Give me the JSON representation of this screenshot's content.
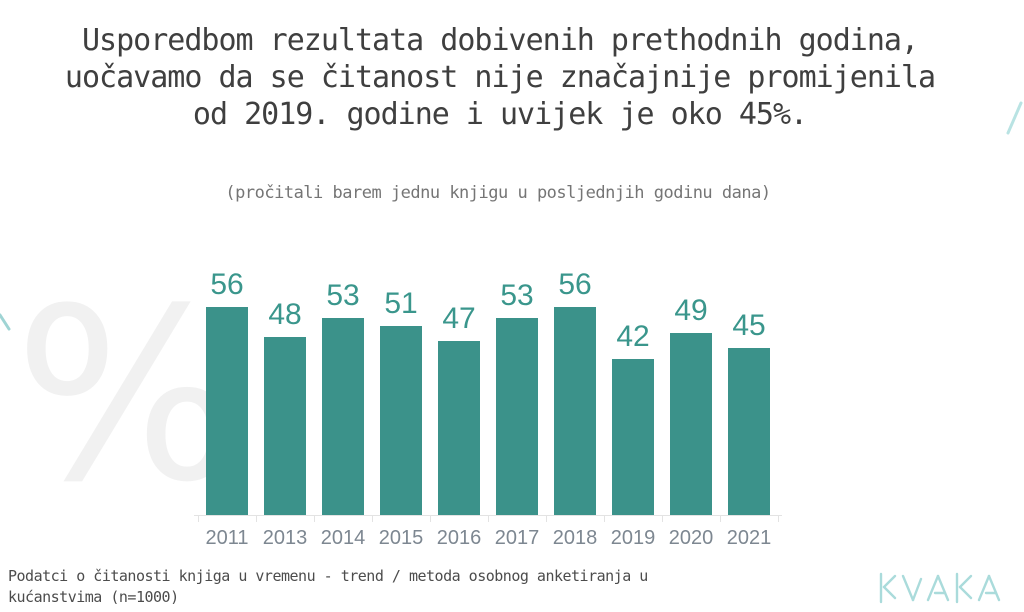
{
  "slide": {
    "title_lines": [
      "Usporedbom rezultata dobivenih prethodnih godina,",
      "uočavamo da se čitanost nije značajnije promijenila",
      "od 2019. godine i uvijek je oko 45%."
    ],
    "subtitle": "(pročitali barem jednu knjigu u posljednjih godinu dana)",
    "footnote": "Podatci o čitanosti knjiga u vremenu - trend / metoda osobnog anketiranja u kućanstvima (n=1000)",
    "watermark": "%",
    "logo_text": "KVAKA"
  },
  "chart_data": {
    "type": "bar",
    "categories": [
      "2011",
      "2013",
      "2014",
      "2015",
      "2016",
      "2017",
      "2018",
      "2019",
      "2020",
      "2021"
    ],
    "values": [
      56,
      48,
      53,
      51,
      47,
      53,
      56,
      42,
      49,
      45
    ],
    "unit": "%",
    "title": "",
    "xlabel": "",
    "ylabel": "",
    "ylim": [
      0,
      60
    ],
    "grid": false,
    "data_labels": true,
    "legend": false
  },
  "colors": {
    "bar": "#3b928a",
    "value_label": "#3a968c",
    "year_label": "#7d8791",
    "title_text": "#3f3f3f",
    "subtitle_text": "#757575",
    "footnote_text": "#4c4c4c",
    "axis_line": "#e3e3e3",
    "watermark": "#f1f1f1",
    "logo": "#aadbdb",
    "background": "#ffffff"
  }
}
